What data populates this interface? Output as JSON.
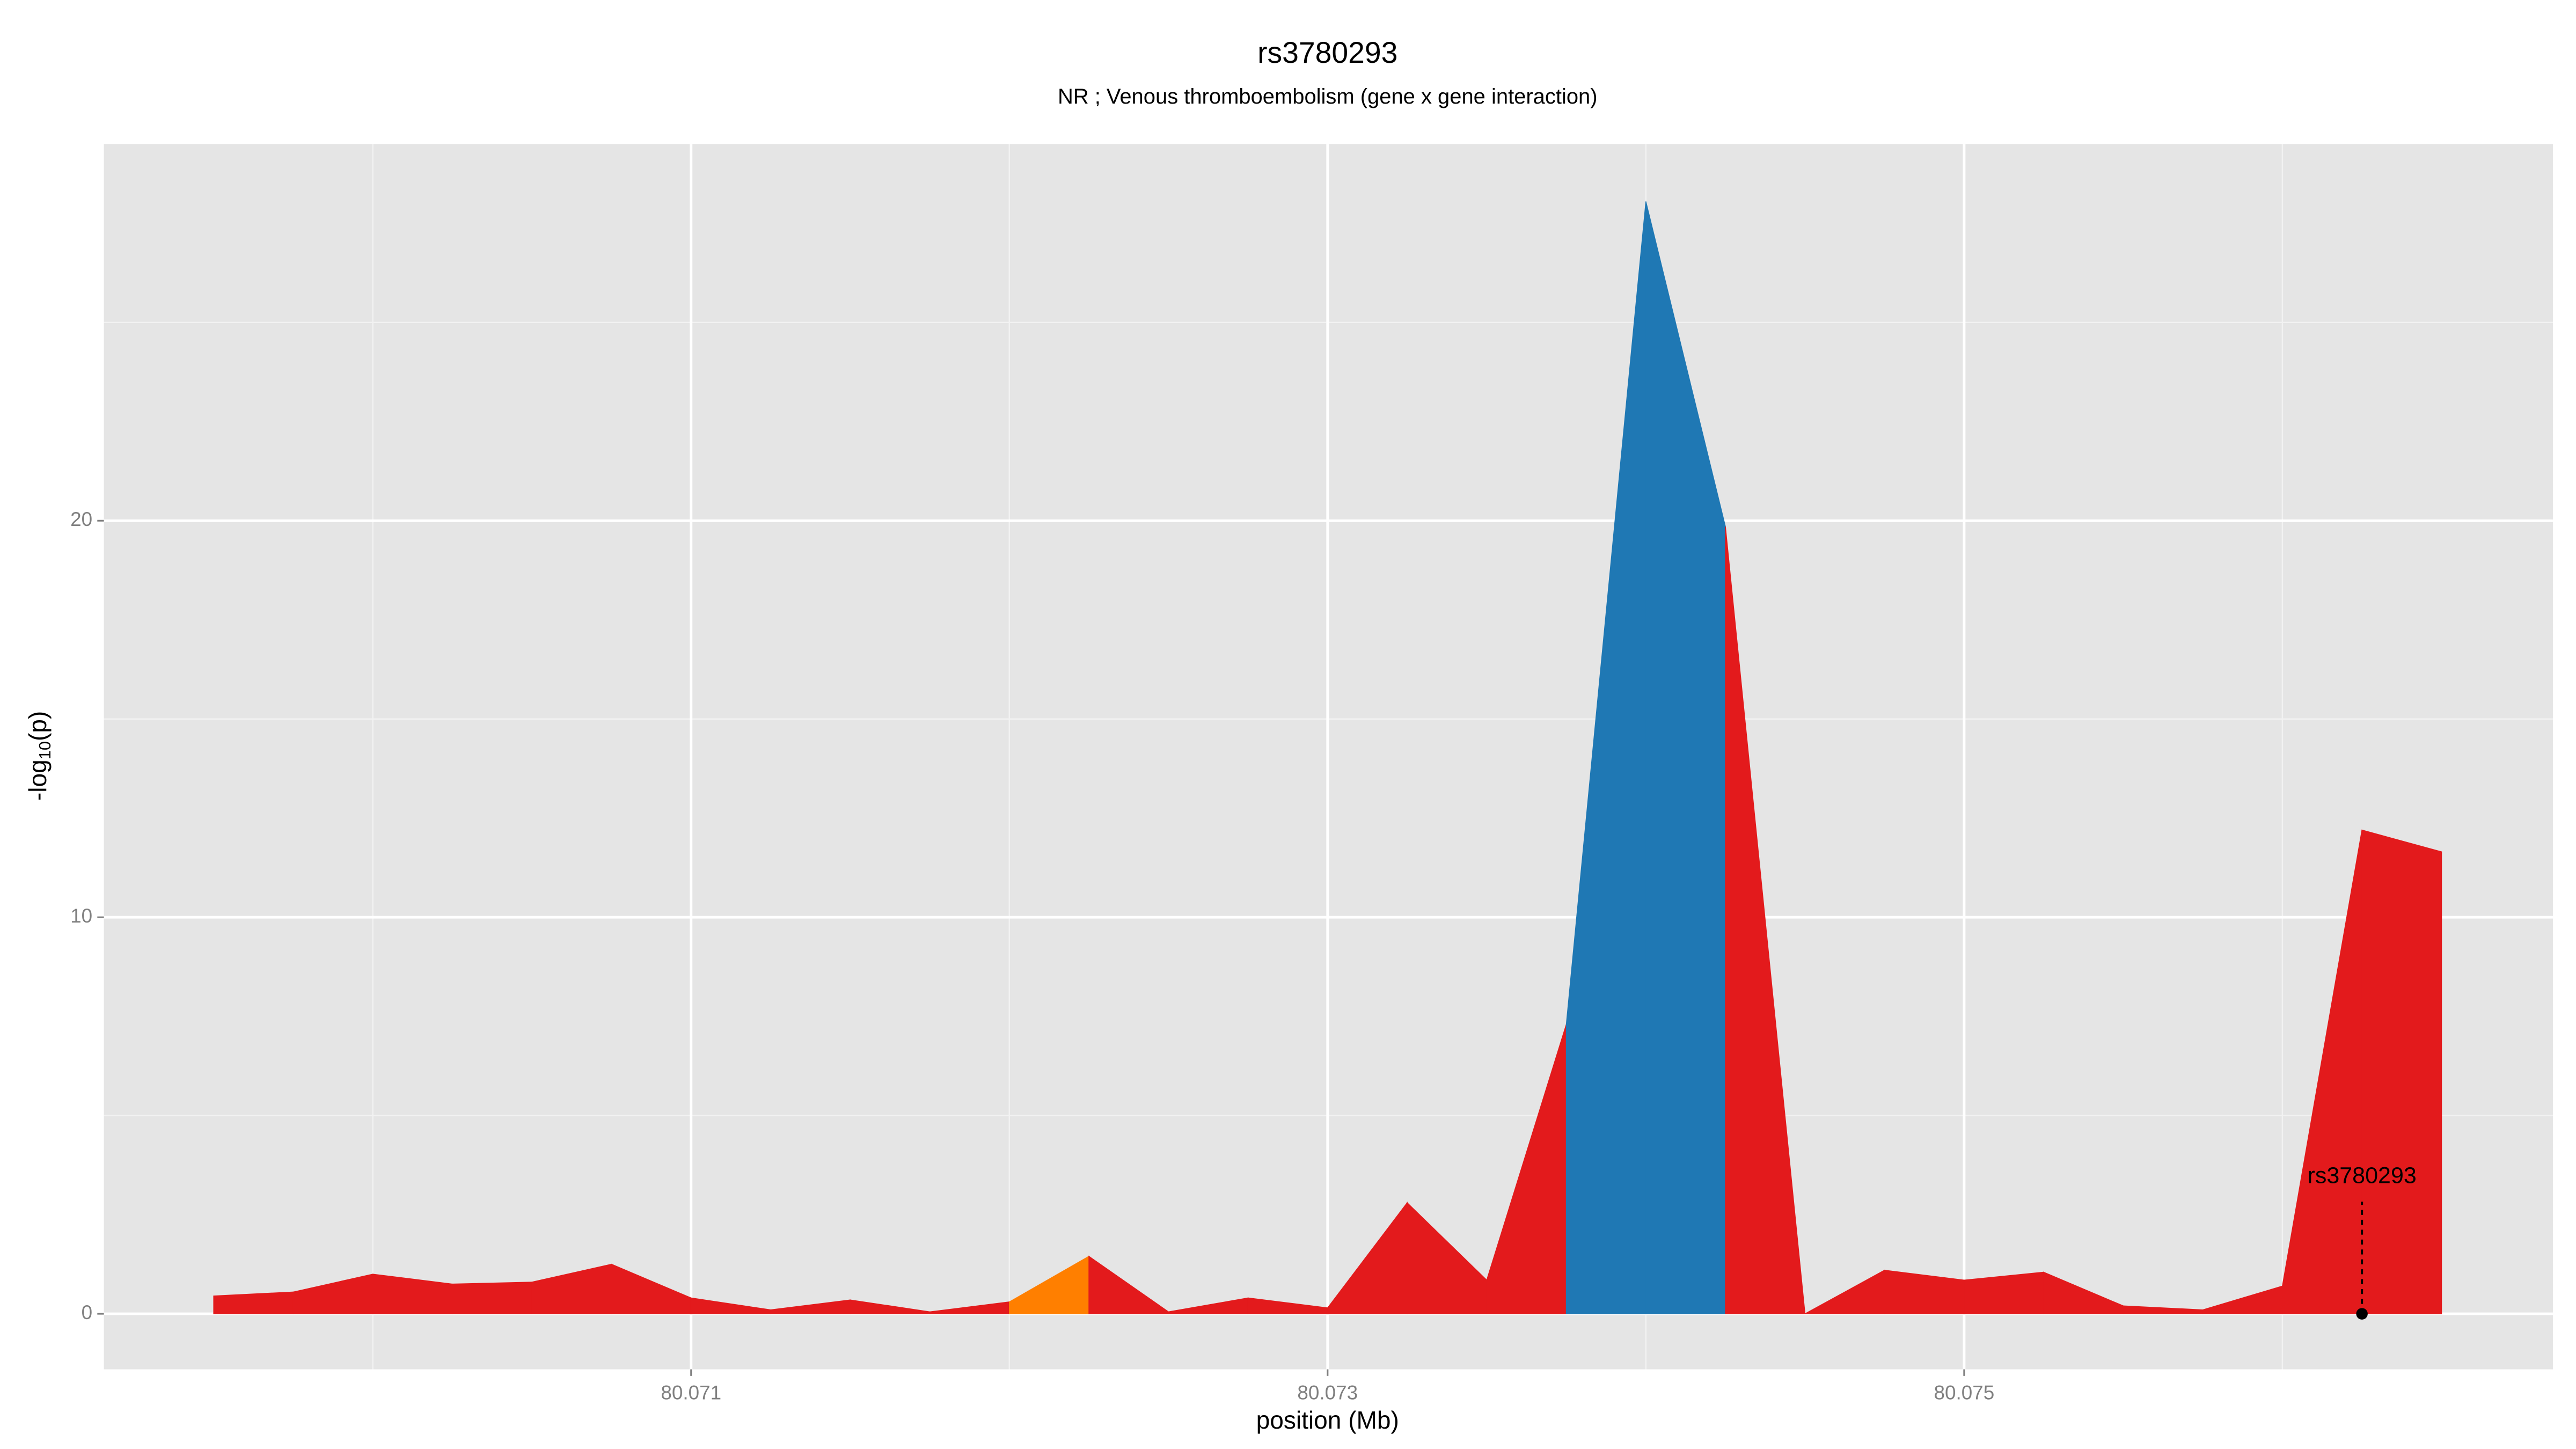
{
  "chart_data": {
    "type": "area",
    "title": "rs3780293",
    "subtitle": "NR ; Venous thromboembolism (gene x gene interaction)",
    "xlabel": "position (Mb)",
    "ylabel": [
      "-log",
      "10",
      "(p)"
    ],
    "x": [
      80.0695,
      80.06975,
      80.07,
      80.07025,
      80.0705,
      80.07075,
      80.071,
      80.07125,
      80.0715,
      80.07175,
      80.072,
      80.07225,
      80.0725,
      80.07275,
      80.073,
      80.07325,
      80.0735,
      80.07375,
      80.074,
      80.07425,
      80.0745,
      80.07475,
      80.075,
      80.07525,
      80.0755,
      80.07575,
      80.076,
      80.07625,
      80.0765
    ],
    "series": [
      {
        "values": [
          0.45,
          0.55,
          1.0,
          0.75,
          0.8,
          1.25,
          0.4,
          0.1,
          0.35,
          0.05,
          0.3,
          1.45,
          0.05,
          0.4,
          0.15,
          2.8,
          0.85,
          7.3,
          28.05,
          19.85,
          0,
          1.1,
          0.85,
          1.05,
          0.2,
          0.1,
          0.7,
          12.2,
          11.65
        ],
        "colors": [
          "#e31a1c",
          "#e31a1c",
          "#e31a1c",
          "#e31a1c",
          "#e31a1c",
          "#e31a1c",
          "#e31a1c",
          "#e31a1c",
          "#e31a1c",
          "#e31a1c",
          "#ff7f00",
          "#e31a1c",
          "#e31a1c",
          "#e31a1c",
          "#e31a1c",
          "#e31a1c",
          "#e31a1c",
          "#1f78b4",
          "#1f78b4",
          "#e31a1c",
          "#e31a1c",
          "#e31a1c",
          "#e31a1c",
          "#e31a1c",
          "#e31a1c",
          "#e31a1c",
          "#e31a1c",
          "#e31a1c",
          "#e31a1c"
        ]
      }
    ],
    "xlim": [
      80.069155,
      80.07685
    ],
    "ylim": [
      -1.4,
      29.5
    ],
    "xticks": [
      80.071,
      80.073,
      80.075
    ],
    "yticks": [
      0,
      10,
      20
    ],
    "grid": true,
    "annotation": {
      "text": "rs3780293",
      "x": 80.07625,
      "y": 0
    }
  }
}
